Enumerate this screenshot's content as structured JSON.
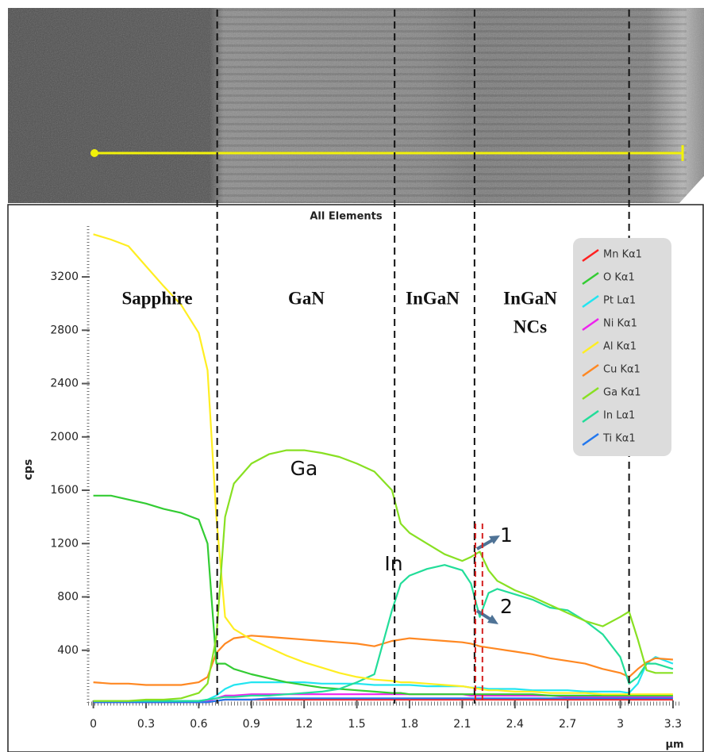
{
  "chart_data": {
    "type": "line",
    "title": "All Elements",
    "x_label": "µm",
    "y_label": "cps",
    "xlim": [
      -0.03,
      3.35
    ],
    "ylim": [
      0,
      3700
    ],
    "xticks": [
      0,
      0.3,
      0.6,
      0.9,
      1.2,
      1.5,
      1.8,
      2.1,
      2.4,
      2.7,
      3,
      3.3
    ],
    "yticks": [
      400,
      800,
      1200,
      1600,
      2000,
      2400,
      2800,
      3200
    ],
    "legend": "upper right",
    "boundaries": [
      0.705,
      1.715,
      2.17,
      3.05
    ],
    "markers": [
      2.175,
      2.215
    ],
    "annotations": [
      "Sapphire",
      "GaN",
      "InGaN",
      "InGaN",
      "NCs",
      "Ga",
      "In",
      "1",
      "2"
    ],
    "x": [
      0,
      0.1,
      0.2,
      0.3,
      0.4,
      0.5,
      0.6,
      0.65,
      0.7,
      0.75,
      0.8,
      0.9,
      1.0,
      1.1,
      1.2,
      1.3,
      1.4,
      1.5,
      1.6,
      1.7,
      1.75,
      1.8,
      1.9,
      2.0,
      2.1,
      2.15,
      2.2,
      2.25,
      2.3,
      2.4,
      2.5,
      2.6,
      2.7,
      2.8,
      2.9,
      3.0,
      3.05,
      3.1,
      3.15,
      3.2,
      3.3
    ],
    "series": [
      {
        "name": "Mn Kα1",
        "color": "#ff2020",
        "values": [
          10,
          10,
          10,
          10,
          10,
          10,
          10,
          10,
          20,
          30,
          30,
          30,
          30,
          30,
          30,
          30,
          30,
          30,
          30,
          30,
          30,
          30,
          30,
          30,
          30,
          30,
          30,
          30,
          30,
          30,
          30,
          30,
          30,
          30,
          30,
          30,
          30,
          30,
          30,
          30,
          30
        ]
      },
      {
        "name": "O Kα1",
        "color": "#33cc33",
        "values": [
          1560,
          1560,
          1530,
          1500,
          1460,
          1430,
          1380,
          1200,
          300,
          300,
          260,
          220,
          190,
          160,
          140,
          120,
          110,
          100,
          90,
          80,
          80,
          70,
          70,
          70,
          70,
          70,
          70,
          70,
          70,
          70,
          70,
          60,
          60,
          60,
          60,
          60,
          60,
          60,
          60,
          60,
          60
        ]
      },
      {
        "name": "Pt Lα1",
        "color": "#22e5f0",
        "values": [
          20,
          20,
          20,
          20,
          20,
          20,
          20,
          30,
          60,
          110,
          140,
          160,
          160,
          160,
          160,
          150,
          150,
          150,
          140,
          140,
          140,
          140,
          130,
          130,
          130,
          120,
          120,
          110,
          110,
          110,
          100,
          100,
          100,
          90,
          90,
          90,
          80,
          150,
          300,
          350,
          300
        ]
      },
      {
        "name": "Ni Kα1",
        "color": "#ee22ee",
        "values": [
          20,
          20,
          20,
          20,
          20,
          20,
          20,
          20,
          40,
          60,
          60,
          70,
          70,
          70,
          70,
          70,
          70,
          70,
          70,
          70,
          70,
          70,
          70,
          70,
          70,
          60,
          60,
          60,
          60,
          60,
          60,
          60,
          50,
          50,
          50,
          50,
          50,
          50,
          50,
          50,
          50
        ]
      },
      {
        "name": "Al Kα1",
        "color": "#ffee22",
        "values": [
          3520,
          3480,
          3430,
          3280,
          3130,
          2990,
          2780,
          2500,
          1400,
          650,
          560,
          480,
          420,
          360,
          310,
          270,
          230,
          200,
          180,
          170,
          160,
          160,
          150,
          140,
          130,
          120,
          110,
          100,
          100,
          90,
          90,
          80,
          80,
          80,
          70,
          70,
          70,
          70,
          70,
          70,
          70
        ]
      },
      {
        "name": "Cu Kα1",
        "color": "#ff8822",
        "values": [
          160,
          150,
          150,
          140,
          140,
          140,
          160,
          200,
          380,
          450,
          490,
          510,
          500,
          490,
          480,
          470,
          460,
          450,
          430,
          470,
          480,
          490,
          480,
          470,
          460,
          450,
          430,
          420,
          410,
          390,
          370,
          340,
          320,
          300,
          260,
          230,
          200,
          260,
          310,
          340,
          330
        ]
      },
      {
        "name": "Ga Kα1",
        "color": "#88e022",
        "values": [
          20,
          20,
          20,
          30,
          30,
          40,
          80,
          150,
          500,
          1400,
          1650,
          1800,
          1870,
          1900,
          1900,
          1880,
          1850,
          1800,
          1740,
          1600,
          1350,
          1280,
          1200,
          1120,
          1070,
          1100,
          1140,
          1000,
          920,
          850,
          800,
          740,
          680,
          620,
          580,
          650,
          690,
          480,
          250,
          230,
          230
        ]
      },
      {
        "name": "In Lα1",
        "color": "#22dd99",
        "values": [
          20,
          20,
          20,
          20,
          20,
          20,
          20,
          30,
          40,
          50,
          50,
          60,
          60,
          70,
          80,
          90,
          110,
          160,
          220,
          700,
          900,
          960,
          1010,
          1040,
          1000,
          900,
          650,
          830,
          860,
          820,
          780,
          720,
          700,
          620,
          520,
          350,
          150,
          200,
          300,
          300,
          260
        ]
      },
      {
        "name": "Ti Kα1",
        "color": "#2277ee",
        "values": [
          10,
          10,
          10,
          10,
          10,
          10,
          10,
          10,
          20,
          30,
          30,
          30,
          40,
          40,
          40,
          40,
          40,
          40,
          40,
          40,
          40,
          40,
          40,
          40,
          40,
          40,
          40,
          40,
          40,
          40,
          40,
          40,
          40,
          40,
          40,
          40,
          40,
          40,
          40,
          40,
          40
        ]
      }
    ]
  }
}
